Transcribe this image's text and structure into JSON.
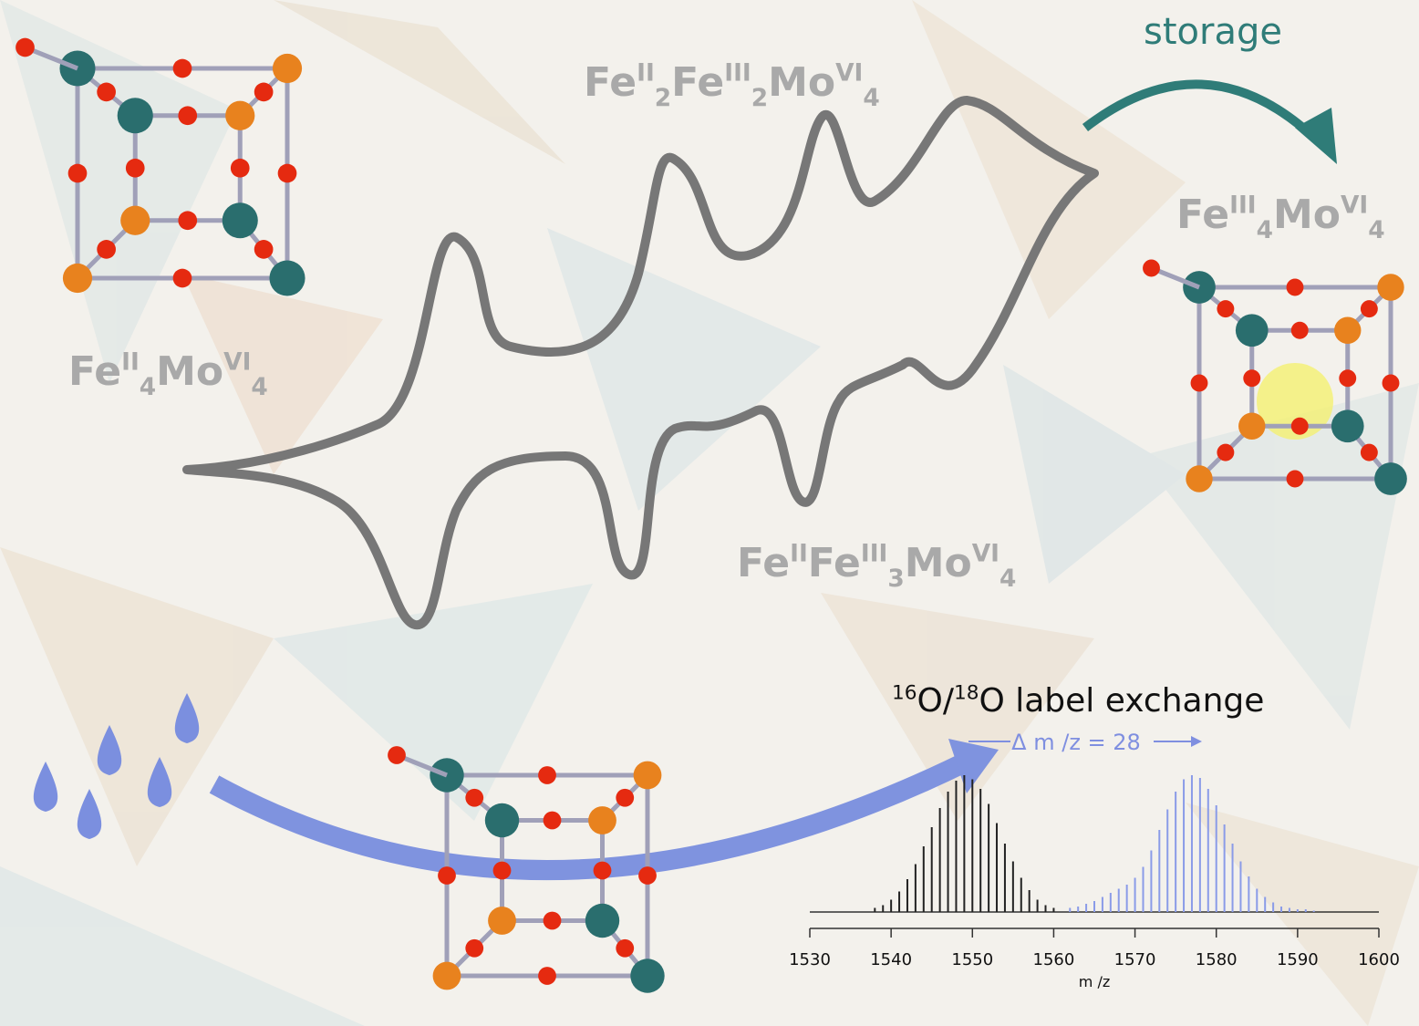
{
  "storage": "storage",
  "formulas": [
    [
      {
        "text": "Fe"
      },
      {
        "sup": "II"
      },
      {
        "sub": "2"
      },
      {
        "text": "Fe"
      },
      {
        "sup": "III"
      },
      {
        "sub": "2"
      },
      {
        "text": "Mo"
      },
      {
        "sup": "VI"
      },
      {
        "sub": "4"
      }
    ],
    [
      {
        "text": "Fe"
      },
      {
        "sup": "III"
      },
      {
        "sub": "4"
      },
      {
        "text": "Mo"
      },
      {
        "sup": "VI"
      },
      {
        "sub": "4"
      }
    ],
    [
      {
        "text": "Fe"
      },
      {
        "sup": "II"
      },
      {
        "sub": "4"
      },
      {
        "text": "Mo"
      },
      {
        "sup": "VI"
      },
      {
        "sub": "4"
      }
    ],
    [
      {
        "text": "Fe"
      },
      {
        "sup": "II"
      },
      {
        "text": "Fe"
      },
      {
        "sup": "III"
      },
      {
        "sub": "3"
      },
      {
        "text": "Mo"
      },
      {
        "sup": "VI"
      },
      {
        "sub": "4"
      }
    ]
  ],
  "label_exchange": [
    {
      "sup": "16"
    },
    {
      "text": "O/"
    },
    {
      "sup": "18"
    },
    {
      "text": "O label exchange"
    }
  ],
  "delta": "Δ m /z = 28",
  "chart_data": {
    "type": "spectrum",
    "x_label": "m /z",
    "xlim": [
      1530,
      1600
    ],
    "xticks": [
      1530,
      1540,
      1550,
      1560,
      1570,
      1580,
      1590,
      1600
    ],
    "ylim": [
      0,
      100
    ],
    "series": [
      {
        "color": "#222222",
        "x": [
          1538,
          1539,
          1540,
          1541,
          1542,
          1543,
          1544,
          1545,
          1546,
          1547,
          1548,
          1549,
          1550,
          1551,
          1552,
          1553,
          1554,
          1555,
          1556,
          1557,
          1558,
          1559,
          1560
        ],
        "values": [
          3,
          5,
          9,
          15,
          24,
          35,
          48,
          62,
          76,
          88,
          96,
          100,
          97,
          90,
          79,
          65,
          50,
          37,
          25,
          16,
          9,
          5,
          3
        ]
      },
      {
        "color": "#8a9be8",
        "x": [
          1562,
          1563,
          1564,
          1565,
          1566,
          1567,
          1568,
          1569,
          1570,
          1571,
          1572,
          1573,
          1574,
          1575,
          1576,
          1577,
          1578,
          1579,
          1580,
          1581,
          1582,
          1583,
          1584,
          1585,
          1586,
          1587,
          1588,
          1589,
          1590,
          1591,
          1592
        ],
        "values": [
          3,
          4,
          6,
          8,
          11,
          14,
          17,
          20,
          25,
          33,
          45,
          60,
          75,
          88,
          97,
          100,
          98,
          90,
          78,
          64,
          50,
          37,
          26,
          17,
          11,
          7,
          4,
          3,
          2,
          2,
          1
        ]
      }
    ]
  }
}
